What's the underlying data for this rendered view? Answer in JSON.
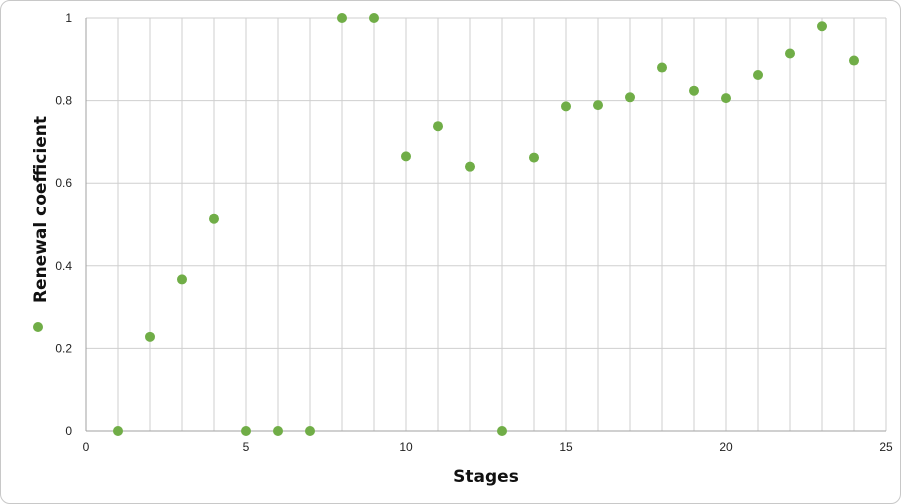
{
  "chart_data": {
    "type": "scatter",
    "title": "",
    "xlabel": "Stages",
    "ylabel": "Renewal coefficient",
    "xlim": [
      0,
      25
    ],
    "ylim": [
      0,
      1
    ],
    "x_ticks": [
      0,
      5,
      10,
      15,
      20,
      25
    ],
    "y_ticks": [
      "0",
      "0.2",
      "0.4",
      "0.6",
      "0.8",
      "1"
    ],
    "grid": "on",
    "legend": "left-bottom, marker only",
    "marker_color": "#70ad47",
    "series": [
      {
        "x": [
          1,
          2,
          3,
          4,
          5,
          6,
          7,
          8,
          9,
          10,
          11,
          12,
          13,
          14,
          15,
          16,
          17,
          18,
          19,
          20,
          21,
          22,
          23,
          24
        ],
        "y": [
          0,
          0.228,
          0.367,
          0.514,
          0,
          0,
          0,
          1.0,
          1.0,
          0.665,
          0.738,
          0.64,
          0,
          0.662,
          0.786,
          0.789,
          0.808,
          0.88,
          0.824,
          0.806,
          0.862,
          0.914,
          0.98,
          0.897
        ]
      }
    ]
  }
}
